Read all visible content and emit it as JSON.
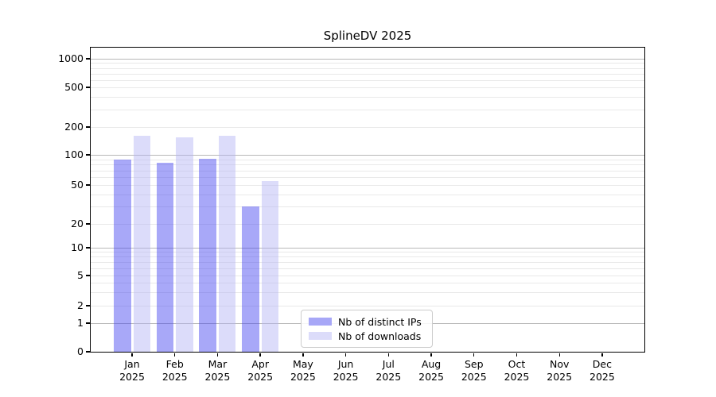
{
  "window": {
    "background": "#ffffff"
  },
  "chart_data": {
    "type": "bar",
    "title": "SplineDV 2025",
    "categories": [
      "Jan",
      "Feb",
      "Mar",
      "Apr",
      "May",
      "Jun",
      "Jul",
      "Aug",
      "Sep",
      "Oct",
      "Nov",
      "Dec"
    ],
    "year_label": "2025",
    "series": [
      {
        "name": "Nb of distinct IPs",
        "color": "#a7a7f7",
        "fill_base": "#3d3df0",
        "fill_alpha": 0.45,
        "values": [
          90,
          83,
          92,
          30,
          0,
          0,
          0,
          0,
          0,
          0,
          0,
          0
        ]
      },
      {
        "name": "Nb of downloads",
        "color": "#dcdcfa",
        "fill_base": "#b1b1f4",
        "fill_alpha": 0.45,
        "values": [
          160,
          154,
          162,
          55,
          0,
          0,
          0,
          0,
          0,
          0,
          0,
          0
        ]
      }
    ],
    "yticks": [
      0,
      1,
      2,
      5,
      10,
      20,
      50,
      100,
      200,
      500,
      1000
    ],
    "yscale": "symlog",
    "ylim": [
      0,
      1300
    ],
    "xlabel": "",
    "ylabel": "",
    "grid": "horizontal major+minor",
    "legend_position": "lower center"
  },
  "colors": {
    "grid_major": "#b8b8b8",
    "grid_minor": "#e9e9e9",
    "spine": "#000000",
    "text": "#000000"
  }
}
